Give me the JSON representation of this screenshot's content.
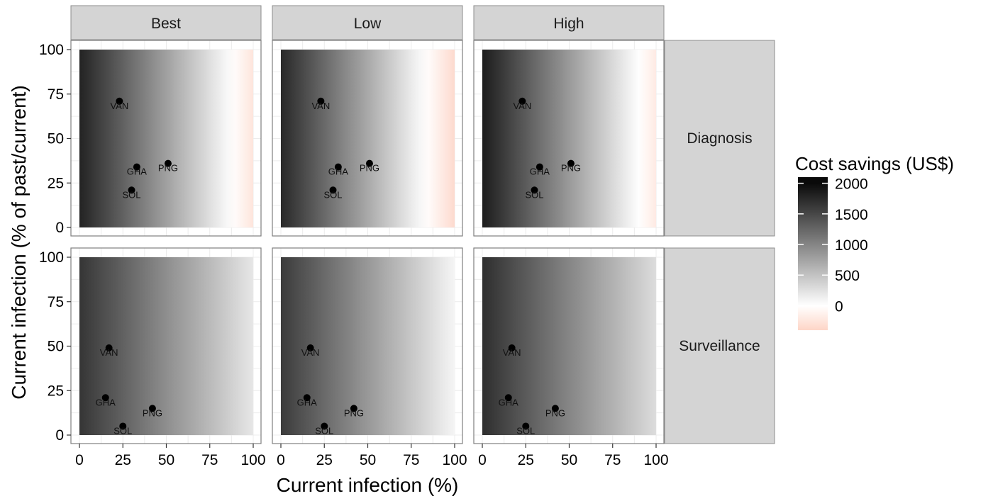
{
  "chart_data": {
    "type": "heatmap",
    "facet_columns": [
      "Best",
      "Low",
      "High"
    ],
    "facet_rows": [
      "Diagnosis",
      "Surveillance"
    ],
    "xlabel": "Current infection (%)",
    "ylabel": "Current infection (% of past/current)",
    "xlim": [
      0,
      100
    ],
    "ylim": [
      0,
      100
    ],
    "x_ticks": [
      0,
      25,
      50,
      75,
      100
    ],
    "y_ticks": [
      0,
      25,
      50,
      75,
      100
    ],
    "grid": true,
    "legend": {
      "title": "Cost savings (US$)",
      "position": "right",
      "breaks": [
        2000,
        1500,
        1000,
        500,
        0
      ],
      "colors": {
        "high": "#0a0a0a",
        "mid": "#ffffff",
        "low": "#fdd5c7"
      }
    },
    "panels": [
      {
        "row": "Diagnosis",
        "col": "Best",
        "fill_at_x0": 1800,
        "fill_at_x100": -250,
        "points": [
          {
            "label": "VAN",
            "x": 23,
            "y": 71
          },
          {
            "label": "GHA",
            "x": 33,
            "y": 34
          },
          {
            "label": "PNG",
            "x": 51,
            "y": 36
          },
          {
            "label": "SOL",
            "x": 30,
            "y": 21
          }
        ]
      },
      {
        "row": "Diagnosis",
        "col": "Low",
        "fill_at_x0": 1750,
        "fill_at_x100": -350,
        "points": [
          {
            "label": "VAN",
            "x": 23,
            "y": 71
          },
          {
            "label": "GHA",
            "x": 33,
            "y": 34
          },
          {
            "label": "PNG",
            "x": 51,
            "y": 36
          },
          {
            "label": "SOL",
            "x": 30,
            "y": 21
          }
        ]
      },
      {
        "row": "Diagnosis",
        "col": "High",
        "fill_at_x0": 1850,
        "fill_at_x100": -200,
        "points": [
          {
            "label": "VAN",
            "x": 23,
            "y": 71
          },
          {
            "label": "GHA",
            "x": 33,
            "y": 34
          },
          {
            "label": "PNG",
            "x": 51,
            "y": 36
          },
          {
            "label": "SOL",
            "x": 30,
            "y": 21
          }
        ]
      },
      {
        "row": "Surveillance",
        "col": "Best",
        "fill_at_x0": 1650,
        "fill_at_x100": 200,
        "points": [
          {
            "label": "VAN",
            "x": 17,
            "y": 49
          },
          {
            "label": "GHA",
            "x": 15,
            "y": 21
          },
          {
            "label": "PNG",
            "x": 42,
            "y": 15
          },
          {
            "label": "SOL",
            "x": 25,
            "y": 5
          }
        ]
      },
      {
        "row": "Surveillance",
        "col": "Low",
        "fill_at_x0": 1600,
        "fill_at_x100": 80,
        "points": [
          {
            "label": "VAN",
            "x": 17,
            "y": 49
          },
          {
            "label": "GHA",
            "x": 15,
            "y": 21
          },
          {
            "label": "PNG",
            "x": 42,
            "y": 15
          },
          {
            "label": "SOL",
            "x": 25,
            "y": 5
          }
        ]
      },
      {
        "row": "Surveillance",
        "col": "High",
        "fill_at_x0": 1700,
        "fill_at_x100": 280,
        "points": [
          {
            "label": "VAN",
            "x": 17,
            "y": 49
          },
          {
            "label": "GHA",
            "x": 15,
            "y": 21
          },
          {
            "label": "PNG",
            "x": 42,
            "y": 15
          },
          {
            "label": "SOL",
            "x": 25,
            "y": 5
          }
        ]
      }
    ]
  }
}
